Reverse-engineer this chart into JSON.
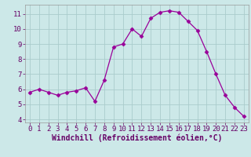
{
  "x": [
    0,
    1,
    2,
    3,
    4,
    5,
    6,
    7,
    8,
    9,
    10,
    11,
    12,
    13,
    14,
    15,
    16,
    17,
    18,
    19,
    20,
    21,
    22,
    23
  ],
  "y": [
    5.8,
    6.0,
    5.8,
    5.6,
    5.8,
    5.9,
    6.1,
    5.2,
    6.6,
    8.8,
    9.0,
    10.0,
    9.5,
    10.7,
    11.1,
    11.2,
    11.1,
    10.5,
    9.9,
    8.5,
    7.0,
    5.6,
    4.8,
    4.2
  ],
  "line_color": "#990099",
  "marker": "D",
  "marker_size": 2.5,
  "bg_color": "#cce8e8",
  "grid_color": "#aacccc",
  "xlabel": "Windchill (Refroidissement éolien,°C)",
  "xlabel_color": "#660066",
  "tick_color": "#660066",
  "xlabel_fontsize": 7,
  "tick_fontsize": 6.5,
  "ylim": [
    3.8,
    11.6
  ],
  "yticks": [
    4,
    5,
    6,
    7,
    8,
    9,
    10,
    11
  ],
  "xlim": [
    -0.5,
    23.5
  ],
  "xticks": [
    0,
    1,
    2,
    3,
    4,
    5,
    6,
    7,
    8,
    9,
    10,
    11,
    12,
    13,
    14,
    15,
    16,
    17,
    18,
    19,
    20,
    21,
    22,
    23
  ]
}
